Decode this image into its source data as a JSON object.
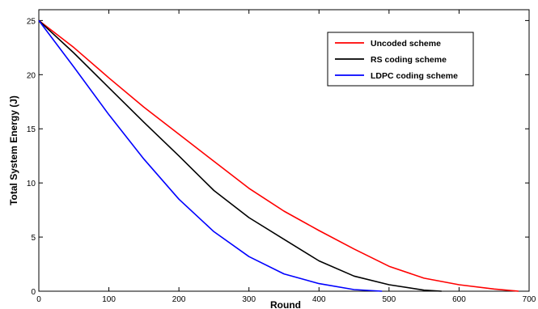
{
  "chart_data": {
    "type": "line",
    "title": "",
    "xlabel": "Round",
    "ylabel": "Total System Energy (J)",
    "xlim": [
      0,
      700
    ],
    "ylim": [
      0,
      26
    ],
    "xticks": [
      0,
      100,
      200,
      300,
      400,
      500,
      600,
      700
    ],
    "yticks": [
      0,
      5,
      10,
      15,
      20,
      25
    ],
    "grid": false,
    "legend_position": "top-right",
    "series": [
      {
        "name": "Uncoded scheme",
        "color": "#ff0000",
        "x": [
          0,
          50,
          100,
          150,
          200,
          250,
          300,
          350,
          400,
          450,
          500,
          550,
          600,
          650,
          685
        ],
        "y": [
          25,
          22.5,
          19.7,
          17.0,
          14.5,
          12.0,
          9.5,
          7.4,
          5.6,
          3.9,
          2.3,
          1.2,
          0.6,
          0.2,
          0
        ]
      },
      {
        "name": "RS coding scheme",
        "color": "#000000",
        "x": [
          0,
          50,
          100,
          150,
          200,
          250,
          300,
          350,
          400,
          450,
          500,
          550,
          575
        ],
        "y": [
          25,
          22.0,
          18.8,
          15.6,
          12.5,
          9.3,
          6.8,
          4.8,
          2.8,
          1.4,
          0.6,
          0.1,
          0
        ]
      },
      {
        "name": "LDPC coding scheme",
        "color": "#0000ff",
        "x": [
          0,
          50,
          100,
          150,
          200,
          250,
          300,
          350,
          400,
          450,
          490
        ],
        "y": [
          25,
          20.7,
          16.3,
          12.2,
          8.5,
          5.5,
          3.2,
          1.6,
          0.7,
          0.15,
          0
        ]
      }
    ]
  }
}
